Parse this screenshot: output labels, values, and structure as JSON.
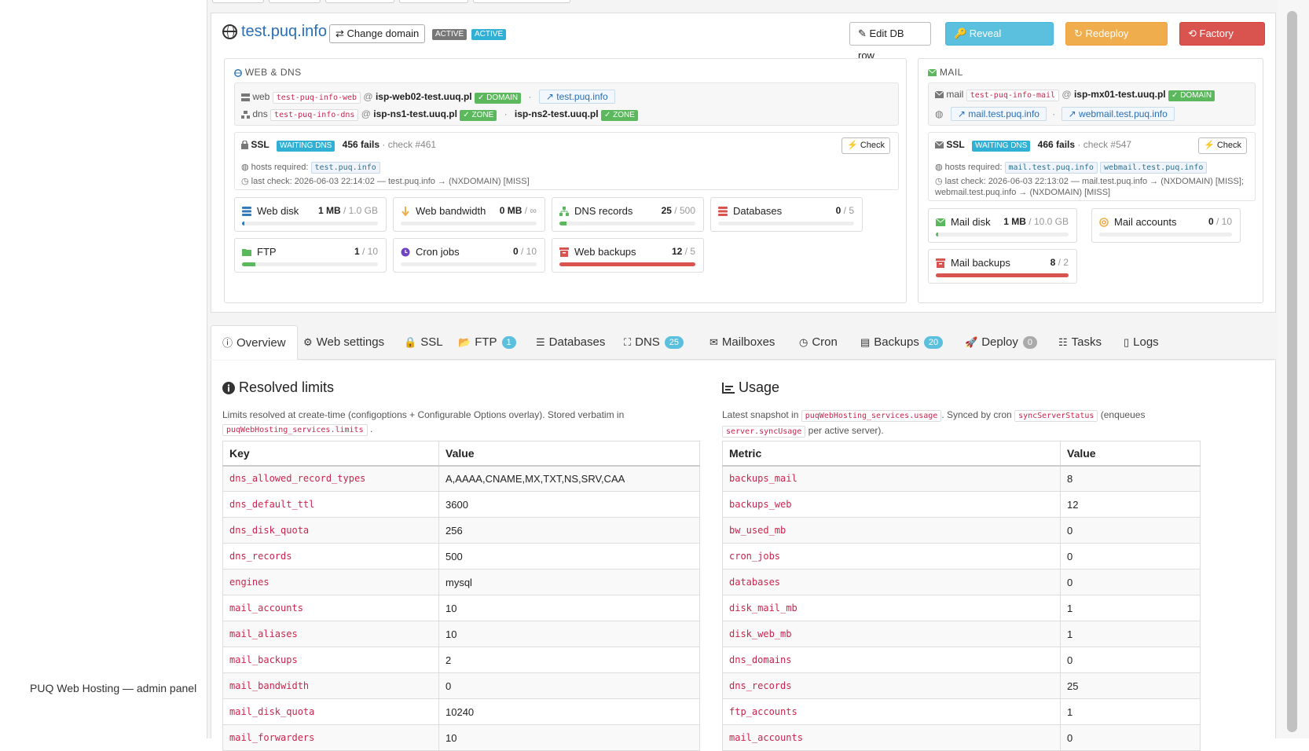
{
  "footer": {
    "label": "PUQ Web Hosting — admin panel"
  },
  "header": {
    "domain": "test.puq.info",
    "change_domain": "⇄ Change domain",
    "status1": "ACTIVE",
    "status2": "ACTIVE",
    "edit_db_row": "✎ Edit DB row",
    "reveal_credentials": "🔑 Reveal credentials",
    "redeploy_service": "↻ Redeploy service",
    "factory_reset": "⟲ Factory reset"
  },
  "webdns": {
    "title": "WEB & DNS",
    "web_label": "web",
    "web_code": "test-puq-info-web",
    "web_server": "isp-web02-test.uuq.pl",
    "web_badge": "✓ DOMAIN",
    "web_link": "test.puq.info",
    "dns_label": "dns",
    "dns_code": "test-puq-info-dns",
    "dns_server1": "isp-ns1-test.uuq.pl",
    "dns_badge1": "✓ ZONE",
    "dns_server2": "isp-ns2-test.uuq.pl",
    "dns_badge2": "✓ ZONE",
    "ssl_label": "SSL",
    "ssl_status": "WAITING DNS",
    "ssl_fails": "456 fails",
    "ssl_check": "· check #461",
    "check_button": "⚡ Check",
    "hosts_required": "hosts required:",
    "hosts": "test.puq.info",
    "last_check": "last check: 2026-06-03 22:14:02 — test.puq.info → (NXDOMAIN) [MISS]"
  },
  "mail": {
    "title": "MAIL",
    "mail_label": "mail",
    "mail_code": "test-puq-info-mail",
    "mail_server": "isp-mx01-test.uuq.pl",
    "mail_badge": "✓ DOMAIN",
    "link1": "mail.test.puq.info",
    "link2": "webmail.test.puq.info",
    "ssl_label": "SSL",
    "ssl_status": "WAITING DNS",
    "ssl_fails": "466 fails",
    "ssl_check": "· check #547",
    "check_button": "⚡ Check",
    "hosts_required": "hosts required:",
    "host1": "mail.test.puq.info",
    "host2": "webmail.test.puq.info",
    "last_check1": "last check: 2026-06-03 22:13:02 — mail.test.puq.info → (NXDOMAIN) [MISS];",
    "last_check2": "webmail.test.puq.info → (NXDOMAIN) [MISS]"
  },
  "quotas_web": [
    {
      "name": "Web disk",
      "used": "1 MB",
      "limit": "/ 1.0 GB",
      "fill": 0.01,
      "color": "#337ab7",
      "icon": "database-icon"
    },
    {
      "name": "Web bandwidth",
      "used": "0 MB",
      "limit": "/ ∞",
      "fill": 0,
      "color": "#f0ad4e",
      "icon": "arrow-down-icon"
    },
    {
      "name": "DNS records",
      "used": "25",
      "limit": "/ 500",
      "fill": 0.05,
      "color": "#5cb85c",
      "icon": "sitemap-icon"
    },
    {
      "name": "Databases",
      "used": "0",
      "limit": "/ 5",
      "fill": 0,
      "color": "#d9534f",
      "icon": "database-icon"
    },
    {
      "name": "FTP",
      "used": "1",
      "limit": "/ 10",
      "fill": 0.1,
      "color": "#5cb85c",
      "icon": "folder-icon"
    },
    {
      "name": "Cron jobs",
      "used": "0",
      "limit": "/ 10",
      "fill": 0,
      "color": "#6f42c1",
      "icon": "clock-icon"
    },
    {
      "name": "Web backups",
      "used": "12",
      "limit": "/ 5",
      "fill": 1,
      "color": "#d9534f",
      "icon": "archive-icon"
    }
  ],
  "quotas_mail": [
    {
      "name": "Mail disk",
      "used": "1 MB",
      "limit": "/ 10.0 GB",
      "fill": 0.01,
      "color": "#5cb85c",
      "icon": "envelope-icon"
    },
    {
      "name": "Mail accounts",
      "used": "0",
      "limit": "/ 10",
      "fill": 0,
      "color": "#f0ad4e",
      "icon": "at-icon"
    },
    {
      "name": "Mail backups",
      "used": "8",
      "limit": "/ 2",
      "fill": 1,
      "color": "#d9534f",
      "icon": "archive-icon"
    }
  ],
  "tabs": [
    {
      "label": "Overview",
      "badge": ""
    },
    {
      "label": "Web settings",
      "badge": ""
    },
    {
      "label": "SSL",
      "badge": ""
    },
    {
      "label": "FTP",
      "badge": "1"
    },
    {
      "label": "Databases",
      "badge": ""
    },
    {
      "label": "DNS",
      "badge": "25"
    },
    {
      "label": "Mailboxes",
      "badge": ""
    },
    {
      "label": "Cron",
      "badge": ""
    },
    {
      "label": "Backups",
      "badge": "20"
    },
    {
      "label": "Deploy",
      "badge": "0"
    },
    {
      "label": "Tasks",
      "badge": ""
    },
    {
      "label": "Logs",
      "badge": ""
    }
  ],
  "limits": {
    "title": "Resolved limits",
    "desc_pre": "Limits resolved at create-time (configoptions + Configurable Options overlay). Stored verbatim in",
    "desc_code": "puqWebHosting_services.limits",
    "desc_post": ".",
    "col_key": "Key",
    "col_value": "Value",
    "rows": [
      [
        "dns_allowed_record_types",
        "A,AAAA,CNAME,MX,TXT,NS,SRV,CAA"
      ],
      [
        "dns_default_ttl",
        "3600"
      ],
      [
        "dns_disk_quota",
        "256"
      ],
      [
        "dns_records",
        "500"
      ],
      [
        "engines",
        "mysql"
      ],
      [
        "mail_accounts",
        "10"
      ],
      [
        "mail_aliases",
        "10"
      ],
      [
        "mail_backups",
        "2"
      ],
      [
        "mail_bandwidth",
        "0"
      ],
      [
        "mail_disk_quota",
        "10240"
      ],
      [
        "mail_forwarders",
        "10"
      ]
    ]
  },
  "usage": {
    "title": "Usage",
    "desc_a": "Latest snapshot in",
    "desc_code1": "puqWebHosting_services.usage",
    "desc_b": ". Synced by cron",
    "desc_code2": "syncServerStatus",
    "desc_c": "(enqueues",
    "desc_code3": "server.syncUsage",
    "desc_d": "per active server).",
    "col_metric": "Metric",
    "col_value": "Value",
    "rows": [
      [
        "backups_mail",
        "8"
      ],
      [
        "backups_web",
        "12"
      ],
      [
        "bw_used_mb",
        "0"
      ],
      [
        "cron_jobs",
        "0"
      ],
      [
        "databases",
        "0"
      ],
      [
        "disk_mail_mb",
        "1"
      ],
      [
        "disk_web_mb",
        "1"
      ],
      [
        "dns_domains",
        "0"
      ],
      [
        "dns_records",
        "25"
      ],
      [
        "ftp_accounts",
        "1"
      ],
      [
        "mail_accounts",
        "0"
      ]
    ]
  }
}
